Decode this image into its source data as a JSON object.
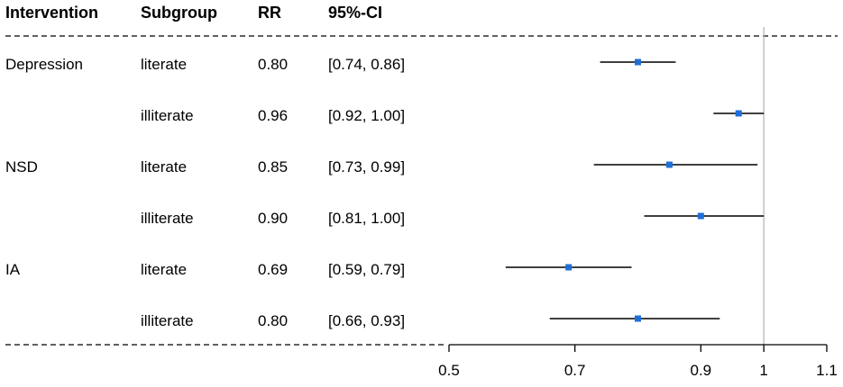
{
  "headers": {
    "intervention": "Intervention",
    "subgroup": "Subgroup",
    "rr": "RR",
    "ci": "95%-CI"
  },
  "rows": [
    {
      "intervention": "Depression",
      "subgroup": "literate",
      "rr": "0.80",
      "ci": "[0.74, 0.86]"
    },
    {
      "intervention": "",
      "subgroup": "illiterate",
      "rr": "0.96",
      "ci": "[0.92, 1.00]"
    },
    {
      "intervention": "NSD",
      "subgroup": "literate",
      "rr": "0.85",
      "ci": "[0.73, 0.99]"
    },
    {
      "intervention": "",
      "subgroup": "illiterate",
      "rr": "0.90",
      "ci": "[0.81, 1.00]"
    },
    {
      "intervention": "IA",
      "subgroup": "literate",
      "rr": "0.69",
      "ci": "[0.59, 0.79]"
    },
    {
      "intervention": "",
      "subgroup": "illiterate",
      "rr": "0.80",
      "ci": "[0.66, 0.93]"
    }
  ],
  "chart_data": {
    "type": "scatter",
    "subtype": "forest",
    "categories": [
      "Depression literate",
      "Depression illiterate",
      "NSD literate",
      "NSD illiterate",
      "IA literate",
      "IA illiterate"
    ],
    "estimates": [
      0.8,
      0.96,
      0.85,
      0.9,
      0.69,
      0.8
    ],
    "lower": [
      0.74,
      0.92,
      0.73,
      0.81,
      0.59,
      0.66
    ],
    "upper": [
      0.86,
      1.0,
      0.99,
      1.0,
      0.79,
      0.93
    ],
    "reference_line": 1,
    "xlim": [
      0.5,
      1.1
    ],
    "xticks": [
      0.5,
      0.7,
      0.9,
      1,
      1.1
    ],
    "xtick_labels": [
      "0.5",
      "0.7",
      "0.9",
      "1",
      "1.1"
    ],
    "marker_color": "#1f6fd6",
    "grid": false
  }
}
